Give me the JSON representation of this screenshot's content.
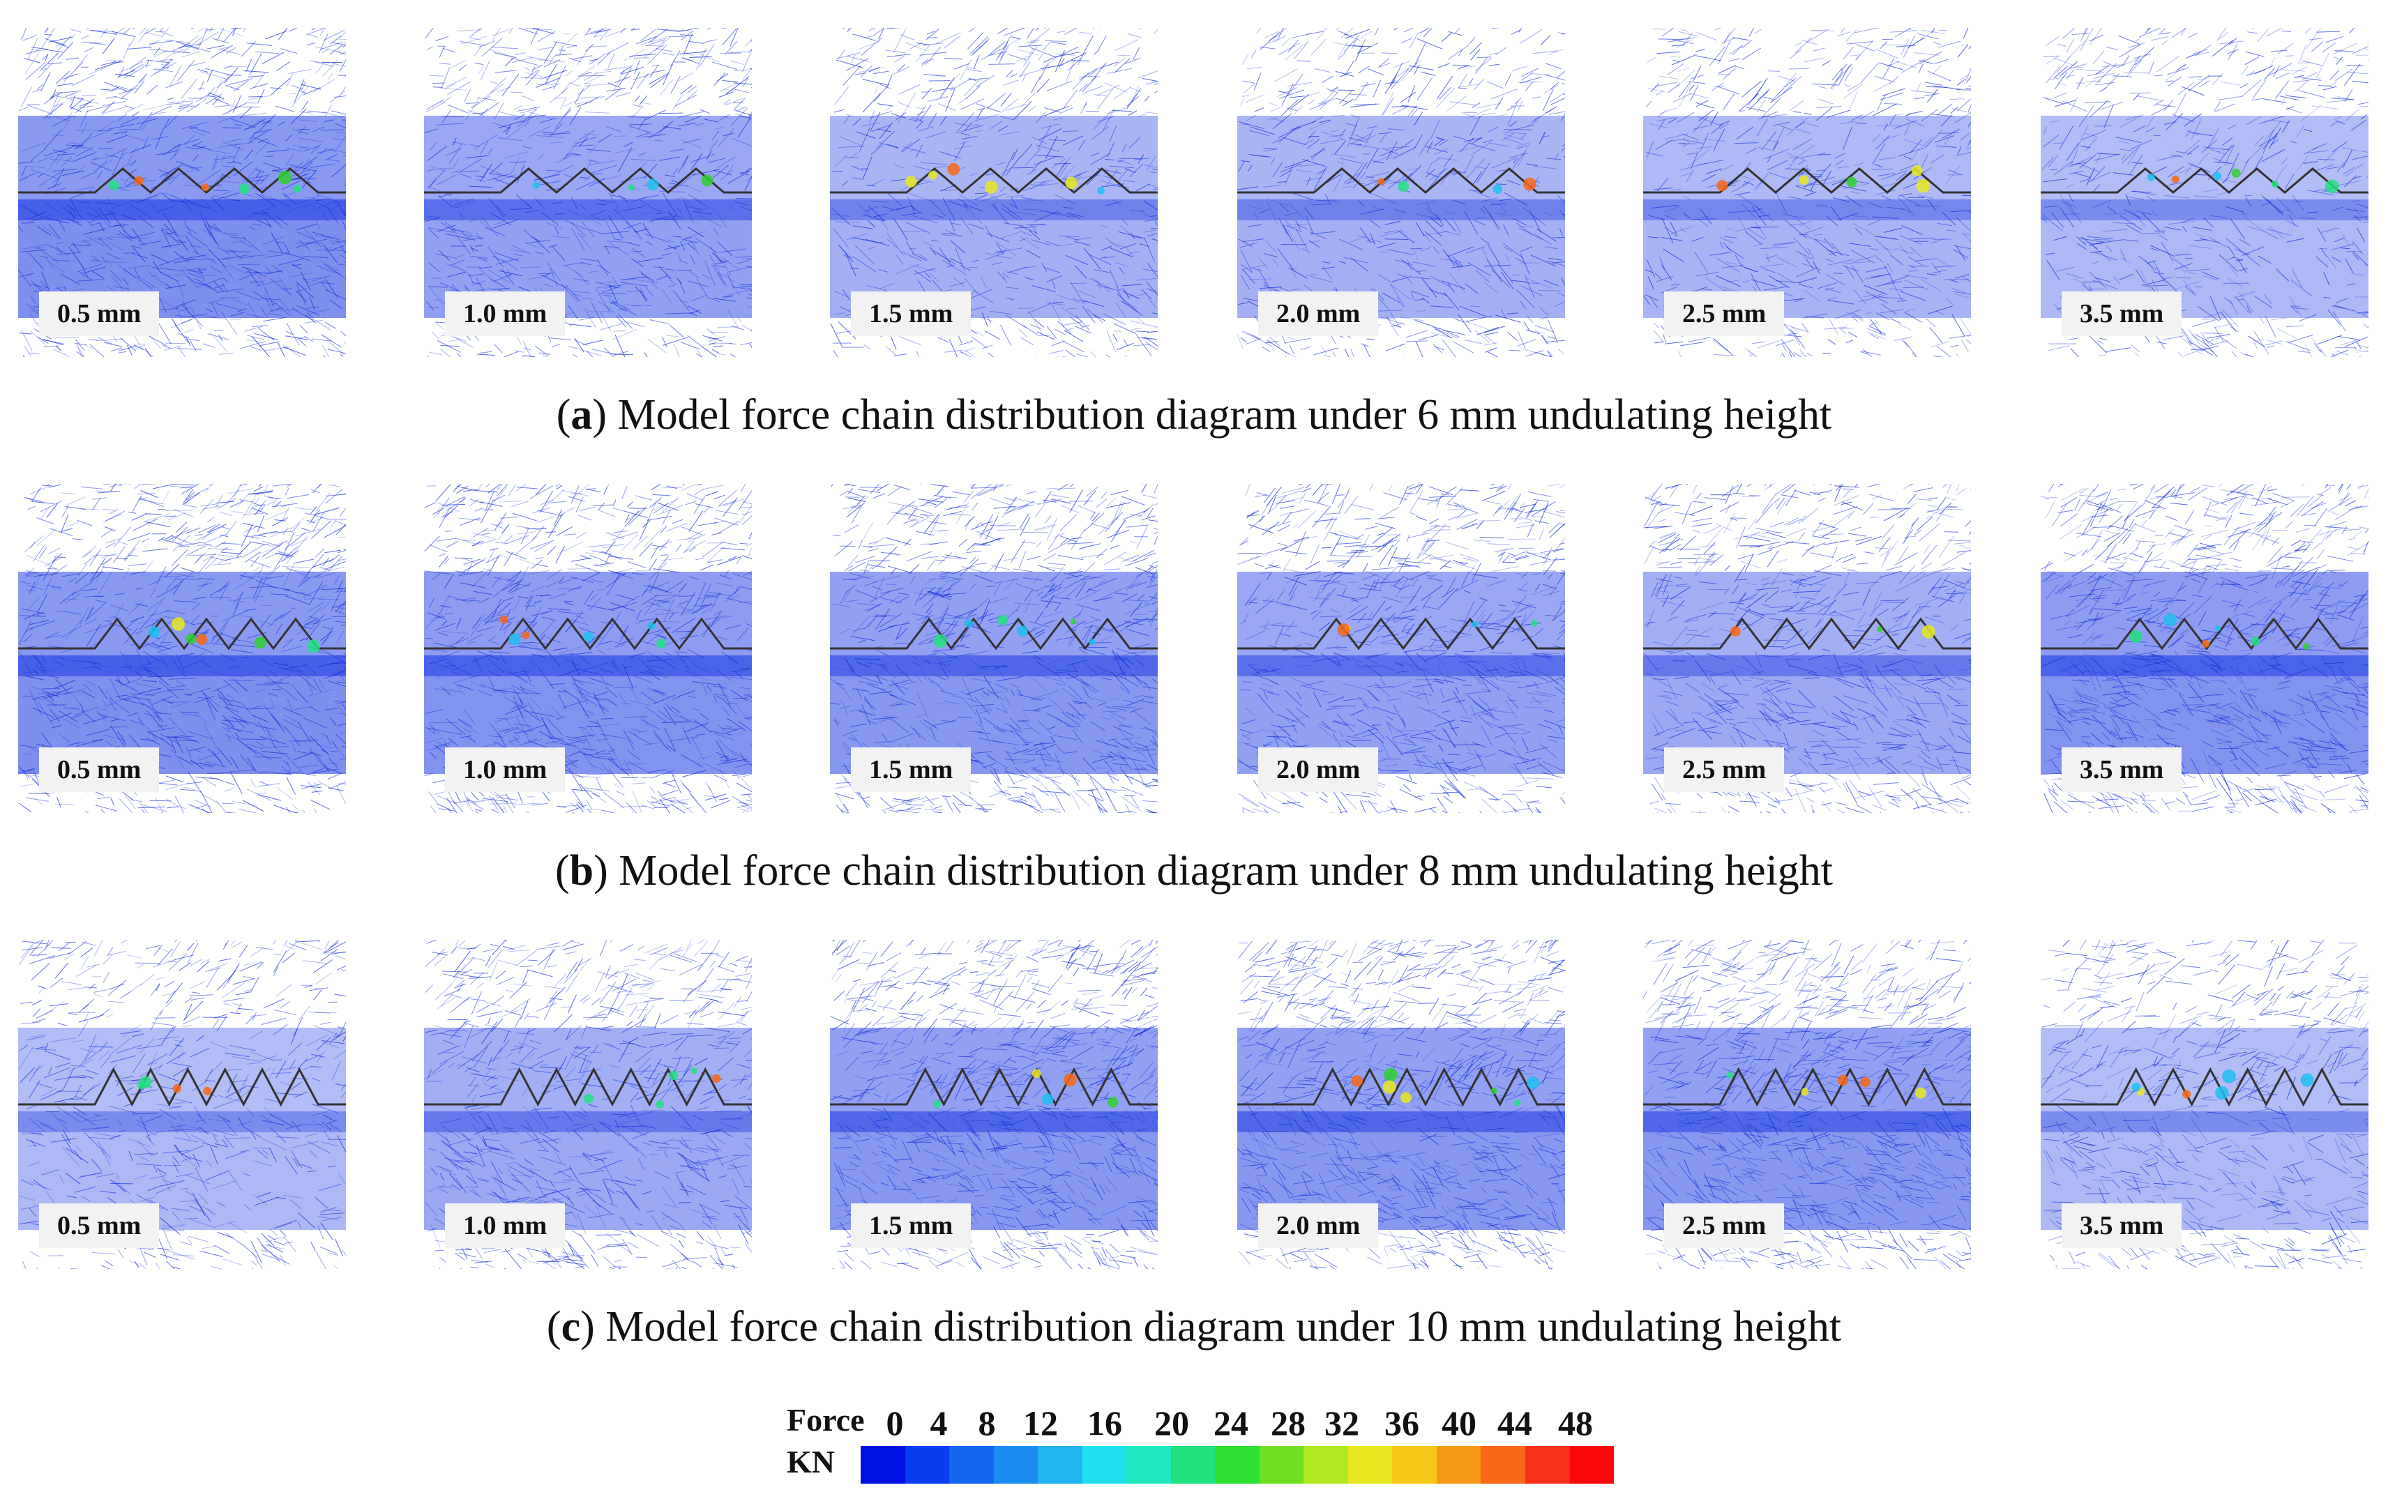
{
  "rows": [
    {
      "id": "a",
      "caption_letter": "a",
      "caption_text": "Model force chain distribution diagram under 6 mm undulating height",
      "panels": [
        {
          "label": "0.5 mm",
          "density": 0.9
        },
        {
          "label": "1.0 mm",
          "density": 0.7
        },
        {
          "label": "1.5 mm",
          "density": 0.5
        },
        {
          "label": "2.0 mm",
          "density": 0.5
        },
        {
          "label": "2.5 mm",
          "density": 0.45
        },
        {
          "label": "3.5 mm",
          "density": 0.4
        }
      ]
    },
    {
      "id": "b",
      "caption_letter": "b",
      "caption_text": "Model force chain distribution diagram under 8 mm undulating height",
      "panels": [
        {
          "label": "0.5 mm",
          "density": 0.9
        },
        {
          "label": "1.0 mm",
          "density": 0.85
        },
        {
          "label": "1.5 mm",
          "density": 0.8
        },
        {
          "label": "2.0 mm",
          "density": 0.7
        },
        {
          "label": "2.5 mm",
          "density": 0.6
        },
        {
          "label": "3.5 mm",
          "density": 0.85
        }
      ]
    },
    {
      "id": "c",
      "caption_letter": "c",
      "caption_text": "Model force chain distribution diagram under 10 mm undulating height",
      "panels": [
        {
          "label": "0.5 mm",
          "density": 0.4
        },
        {
          "label": "1.0 mm",
          "density": 0.6
        },
        {
          "label": "1.5 mm",
          "density": 0.8
        },
        {
          "label": "2.0 mm",
          "density": 0.8
        },
        {
          "label": "2.5 mm",
          "density": 0.8
        },
        {
          "label": "3.5 mm",
          "density": 0.4
        }
      ]
    }
  ],
  "colorbar": {
    "title_line1": "Force",
    "title_line2": "KN",
    "ticks": [
      "0",
      "4",
      "8",
      "12",
      "16",
      "20",
      "24",
      "28",
      "32",
      "36",
      "40",
      "44",
      "48"
    ],
    "colors": [
      "#0010e0",
      "#0a3cf0",
      "#1266f0",
      "#1a8cf0",
      "#22b4f0",
      "#20e0f0",
      "#20e8c0",
      "#20e080",
      "#30e030",
      "#70e020",
      "#b0e820",
      "#e8e820",
      "#f8c818",
      "#f89818",
      "#f86818",
      "#f83018",
      "#f80808"
    ]
  }
}
